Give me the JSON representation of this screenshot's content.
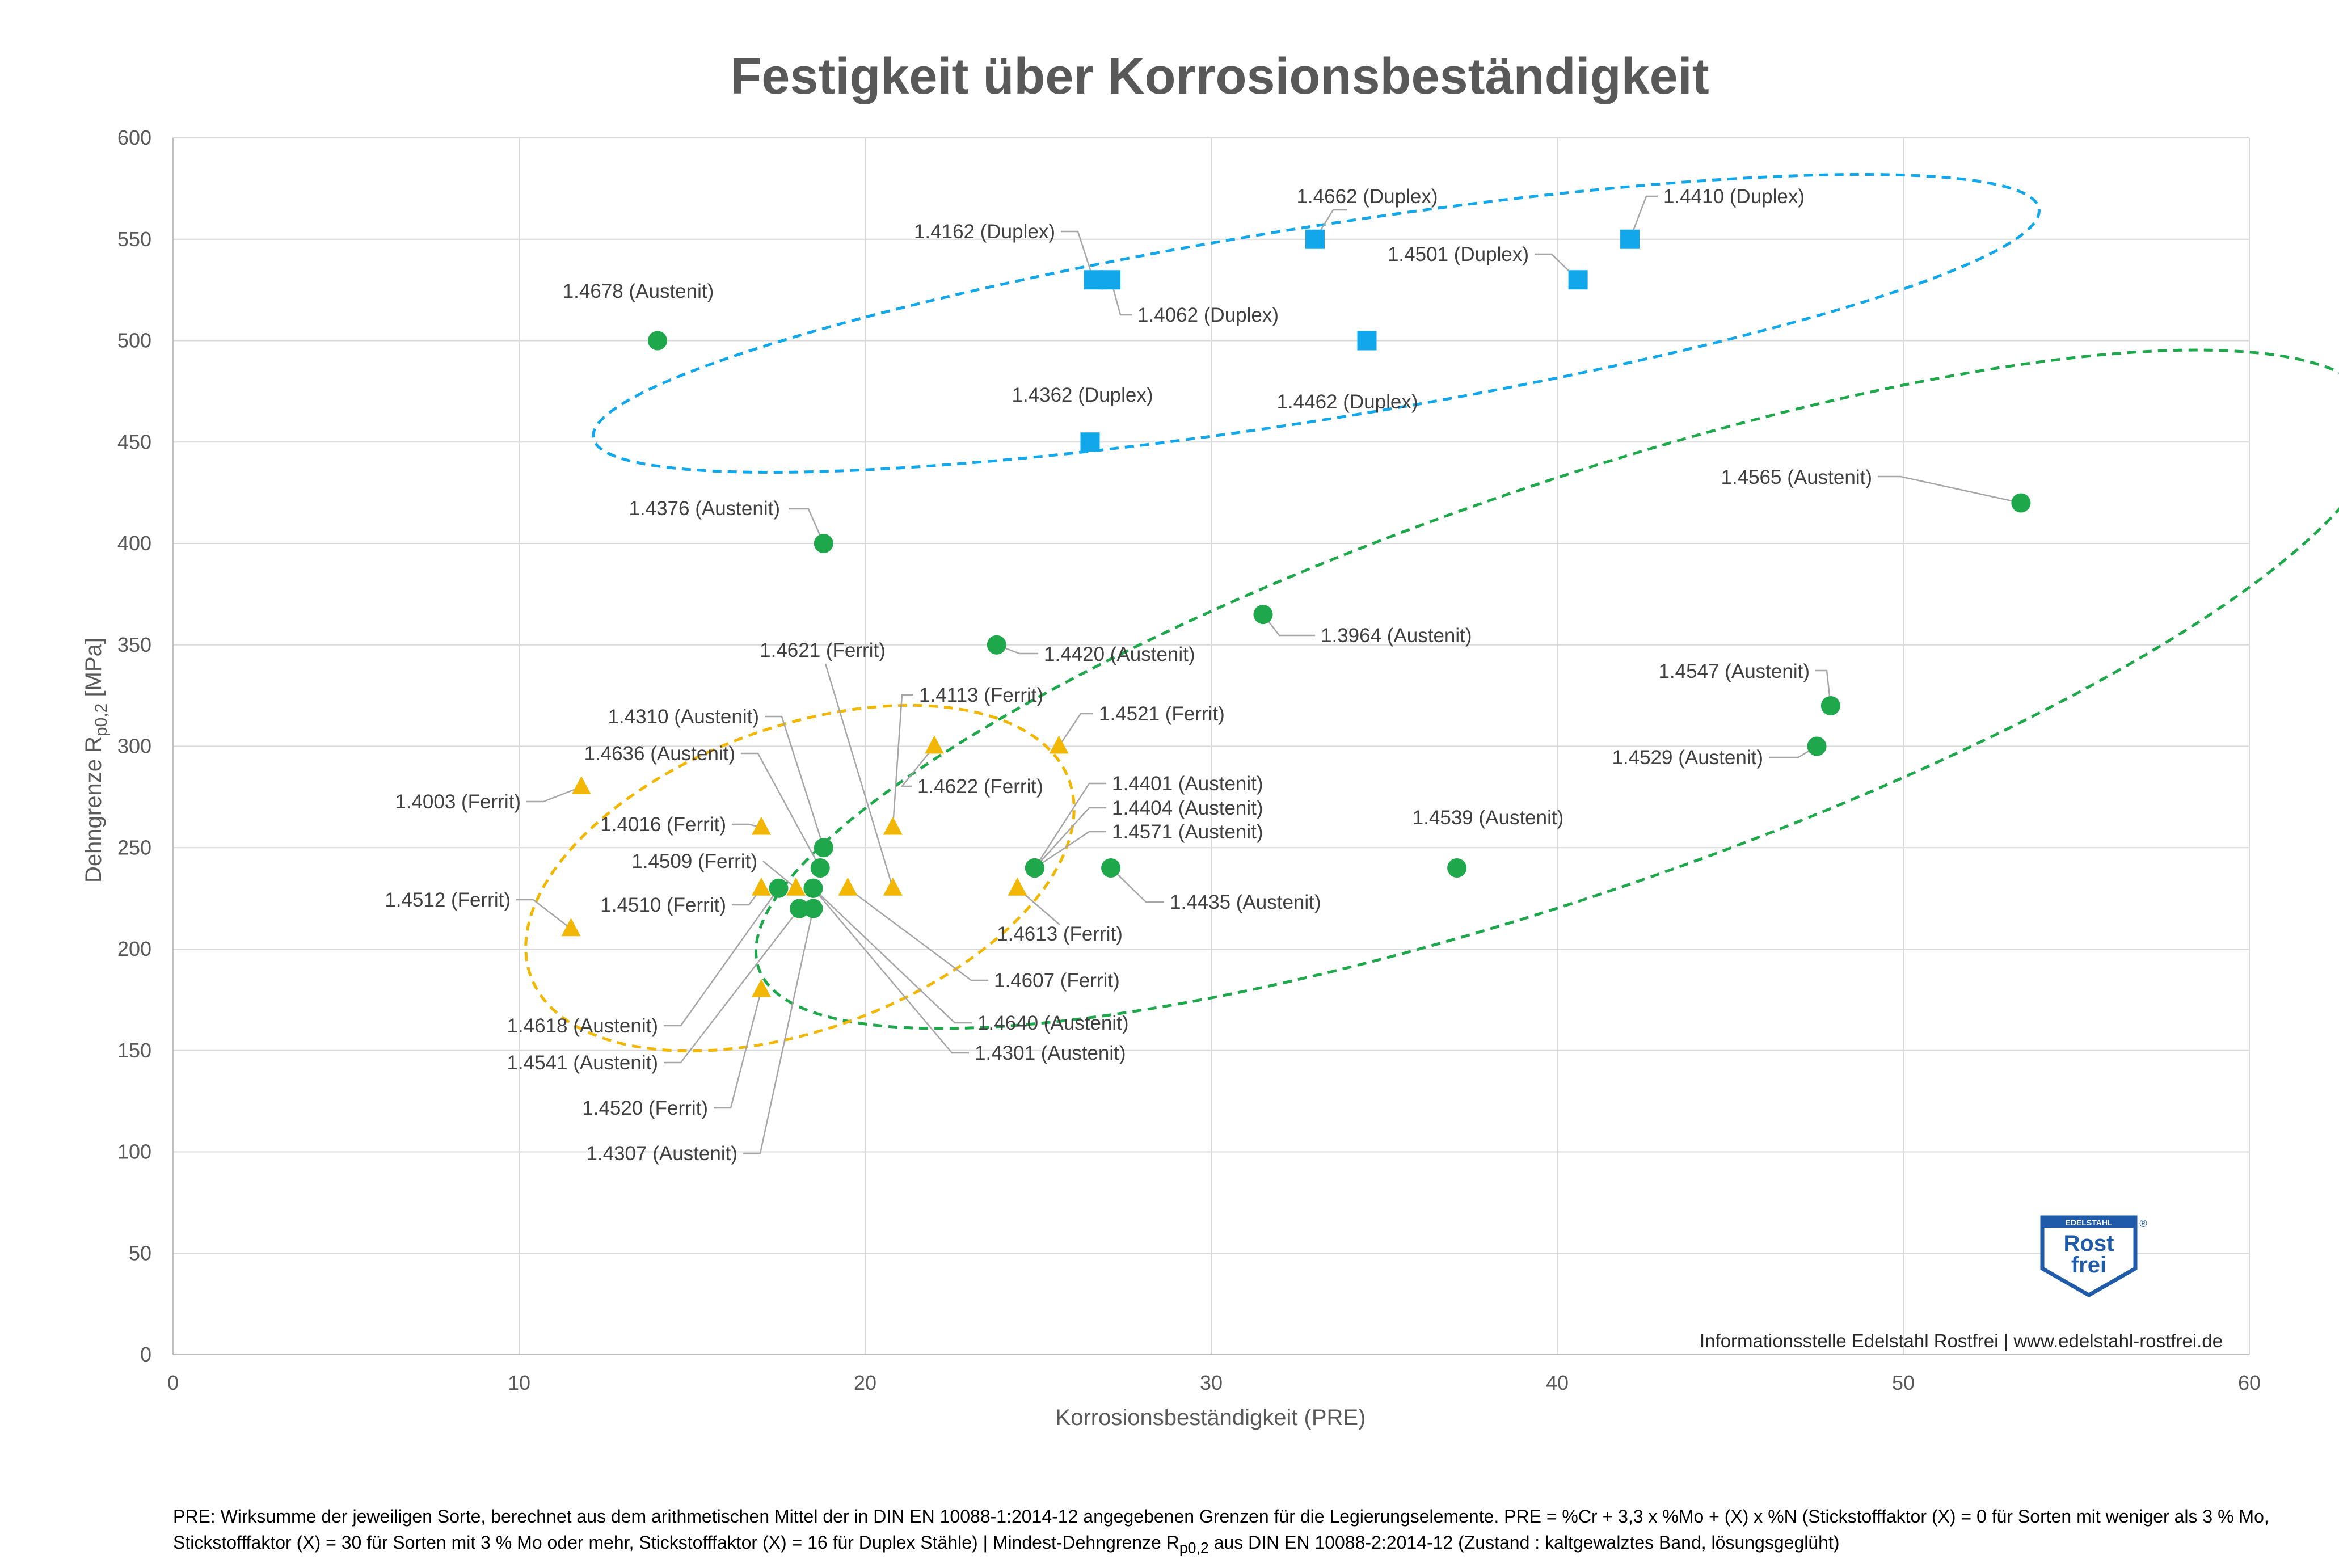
{
  "colors": {
    "austenit": "#1EA84B",
    "ferrit": "#F2B705",
    "duplex": "#12A7EA",
    "grid": "#D9D9D9",
    "leader": "#A6A6A6",
    "text": "#595959",
    "logo_blue": "#1F5BA8"
  },
  "chart_data": {
    "type": "scatter",
    "title": "Festigkeit über Korrosionsbeständigkeit",
    "xlabel": "Korrosionsbeständigkeit (PRE)",
    "ylabel_main": "Dehngrenze R",
    "ylabel_sub": "p0,2",
    "ylabel_unit": " [MPa]",
    "xlim": [
      0,
      60
    ],
    "ylim": [
      0,
      600
    ],
    "xticks": [
      0,
      10,
      20,
      30,
      40,
      50,
      60
    ],
    "yticks": [
      0,
      50,
      100,
      150,
      200,
      250,
      300,
      350,
      400,
      450,
      500,
      550,
      600
    ],
    "grid": true,
    "points": [
      {
        "label": "1.4678 (Austenit)",
        "group": "austenit",
        "x": 14.0,
        "y": 500
      },
      {
        "label": "1.4376 (Austenit)",
        "group": "austenit",
        "x": 18.8,
        "y": 400
      },
      {
        "label": "1.4420 (Austenit)",
        "group": "austenit",
        "x": 23.8,
        "y": 350
      },
      {
        "label": "1.3964 (Austenit)",
        "group": "austenit",
        "x": 31.5,
        "y": 365
      },
      {
        "label": "1.4565 (Austenit)",
        "group": "austenit",
        "x": 53.4,
        "y": 420
      },
      {
        "label": "1.4547 (Austenit)",
        "group": "austenit",
        "x": 47.9,
        "y": 320
      },
      {
        "label": "1.4529 (Austenit)",
        "group": "austenit",
        "x": 47.5,
        "y": 300
      },
      {
        "label": "1.4539 (Austenit)",
        "group": "austenit",
        "x": 37.1,
        "y": 240
      },
      {
        "label": "1.4435 (Austenit)",
        "group": "austenit",
        "x": 27.1,
        "y": 240
      },
      {
        "label": "1.4401 (Austenit)",
        "group": "austenit",
        "x": 24.9,
        "y": 240
      },
      {
        "label": "1.4404 (Austenit)",
        "group": "austenit",
        "x": 24.9,
        "y": 240
      },
      {
        "label": "1.4571 (Austenit)",
        "group": "austenit",
        "x": 24.9,
        "y": 240
      },
      {
        "label": "1.4310 (Austenit)",
        "group": "austenit",
        "x": 18.8,
        "y": 250
      },
      {
        "label": "1.4636 (Austenit)",
        "group": "austenit",
        "x": 18.7,
        "y": 240
      },
      {
        "label": "1.4618 (Austenit)",
        "group": "austenit",
        "x": 17.5,
        "y": 230
      },
      {
        "label": "1.4541 (Austenit)",
        "group": "austenit",
        "x": 18.1,
        "y": 220
      },
      {
        "label": "1.4307 (Austenit)",
        "group": "austenit",
        "x": 18.5,
        "y": 220
      },
      {
        "label": "1.4640 (Austenit)",
        "group": "austenit",
        "x": 18.5,
        "y": 230
      },
      {
        "label": "1.4301 (Austenit)",
        "group": "austenit",
        "x": 18.5,
        "y": 230
      },
      {
        "label": "1.4003 (Ferrit)",
        "group": "ferrit",
        "x": 11.8,
        "y": 280
      },
      {
        "label": "1.4512 (Ferrit)",
        "group": "ferrit",
        "x": 11.5,
        "y": 210
      },
      {
        "label": "1.4016 (Ferrit)",
        "group": "ferrit",
        "x": 17.0,
        "y": 260
      },
      {
        "label": "1.4509 (Ferrit)",
        "group": "ferrit",
        "x": 18.0,
        "y": 230
      },
      {
        "label": "1.4510 (Ferrit)",
        "group": "ferrit",
        "x": 17.0,
        "y": 230
      },
      {
        "label": "1.4520 (Ferrit)",
        "group": "ferrit",
        "x": 17.0,
        "y": 180
      },
      {
        "label": "1.4621 (Ferrit)",
        "group": "ferrit",
        "x": 20.8,
        "y": 230
      },
      {
        "label": "1.4113 (Ferrit)",
        "group": "ferrit",
        "x": 20.8,
        "y": 260
      },
      {
        "label": "1.4622 (Ferrit)",
        "group": "ferrit",
        "x": 22.0,
        "y": 300
      },
      {
        "label": "1.4521 (Ferrit)",
        "group": "ferrit",
        "x": 25.6,
        "y": 300
      },
      {
        "label": "1.4613 (Ferrit)",
        "group": "ferrit",
        "x": 24.4,
        "y": 230
      },
      {
        "label": "1.4607 (Ferrit)",
        "group": "ferrit",
        "x": 19.5,
        "y": 230
      },
      {
        "label": "1.4162 (Duplex)",
        "group": "duplex",
        "x": 26.6,
        "y": 530
      },
      {
        "label": "1.4062 (Duplex)",
        "group": "duplex",
        "x": 27.1,
        "y": 530
      },
      {
        "label": "1.4662 (Duplex)",
        "group": "duplex",
        "x": 33.0,
        "y": 550
      },
      {
        "label": "1.4410 (Duplex)",
        "group": "duplex",
        "x": 42.1,
        "y": 550
      },
      {
        "label": "1.4501 (Duplex)",
        "group": "duplex",
        "x": 40.6,
        "y": 530
      },
      {
        "label": "1.4462 (Duplex)",
        "group": "duplex",
        "x": 34.5,
        "y": 500
      },
      {
        "label": "1.4362 (Duplex)",
        "group": "duplex",
        "x": 26.5,
        "y": 450
      }
    ]
  },
  "credit": "Informationsstelle Edelstahl Rostfrei | www.edelstahl-rostfrei.de",
  "logo": {
    "top": "EDELSTAHL",
    "line1": "Rost",
    "line2": "frei",
    "mark": "®"
  },
  "footnote": {
    "part1": "PRE: Wirksumme der jeweiligen Sorte, berechnet aus dem arithmetischen Mittel der in DIN EN 10088-1:2014-12  angegebenen Grenzen für die Legierungselemente. PRE = %Cr + 3,3 x %Mo + (X) x %N (Stickstofffaktor (X) = 0 für Sorten mit weniger als 3 % Mo, Stickstofffaktor (X) = 30 für Sorten mit 3 % Mo oder mehr, Stickstofffaktor (X) = 16 für Duplex Stähle) | Mindest-Dehngrenze R",
    "sub": "p0,2",
    "part2": " aus DIN EN 10088-2:2014-12 (Zustand : kaltgewalztes Band, lösungsgeglüht)"
  }
}
